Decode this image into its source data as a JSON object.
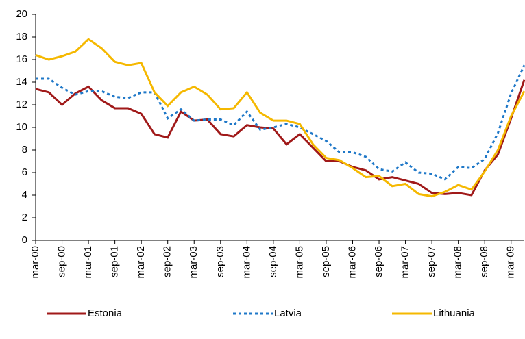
{
  "chart_data": {
    "type": "line",
    "categories": [
      "mar-00",
      null,
      "sep-00",
      null,
      "mar-01",
      null,
      "sep-01",
      null,
      "mar-02",
      null,
      "sep-02",
      null,
      "mar-03",
      null,
      "sep-03",
      null,
      "mar-04",
      null,
      "sep-04",
      null,
      "mar-05",
      null,
      "sep-05",
      null,
      "mar-06",
      null,
      "sep-06",
      null,
      "mar-07",
      null,
      "sep-07",
      null,
      "mar-08",
      null,
      "sep-08",
      null,
      "mar-09",
      null
    ],
    "series": [
      {
        "name": "Estonia",
        "color": "#a01919",
        "dash": "solid",
        "values": [
          13.4,
          13.1,
          12.0,
          13.0,
          13.6,
          12.4,
          11.7,
          11.7,
          11.2,
          9.4,
          9.1,
          11.4,
          10.6,
          10.7,
          9.4,
          9.2,
          10.2,
          10.0,
          9.9,
          8.5,
          9.4,
          8.2,
          7.0,
          7.0,
          6.5,
          6.2,
          5.4,
          5.6,
          5.3,
          5.0,
          4.2,
          4.1,
          4.2,
          4.0,
          6.2,
          7.6,
          10.8,
          14.2
        ]
      },
      {
        "name": "Latvia",
        "color": "#1f78c8",
        "dash": "dotted",
        "values": [
          14.3,
          14.3,
          13.5,
          12.9,
          13.2,
          13.2,
          12.7,
          12.6,
          13.1,
          13.1,
          10.8,
          11.6,
          10.6,
          10.7,
          10.7,
          10.2,
          11.4,
          9.8,
          10.0,
          10.3,
          10.0,
          9.4,
          8.8,
          7.8,
          7.8,
          7.4,
          6.3,
          6.1,
          6.9,
          6.0,
          5.9,
          5.4,
          6.5,
          6.4,
          7.2,
          9.5,
          13.0,
          15.5
        ]
      },
      {
        "name": "Lithuania",
        "color": "#f5b800",
        "dash": "solid",
        "values": [
          16.4,
          16.0,
          16.3,
          16.7,
          17.8,
          17.0,
          15.8,
          15.5,
          15.7,
          13.1,
          11.9,
          13.1,
          13.6,
          12.9,
          11.6,
          11.7,
          13.1,
          11.3,
          10.6,
          10.6,
          10.3,
          8.5,
          7.3,
          7.1,
          6.4,
          5.6,
          5.7,
          4.8,
          5.0,
          4.1,
          3.9,
          4.3,
          4.9,
          4.5,
          6.1,
          8.0,
          11.0,
          13.2
        ]
      }
    ],
    "ylim": [
      0,
      20
    ],
    "yticks": [
      0,
      2,
      4,
      6,
      8,
      10,
      12,
      14,
      16,
      18,
      20
    ],
    "grid": false,
    "legend": "bottom"
  }
}
